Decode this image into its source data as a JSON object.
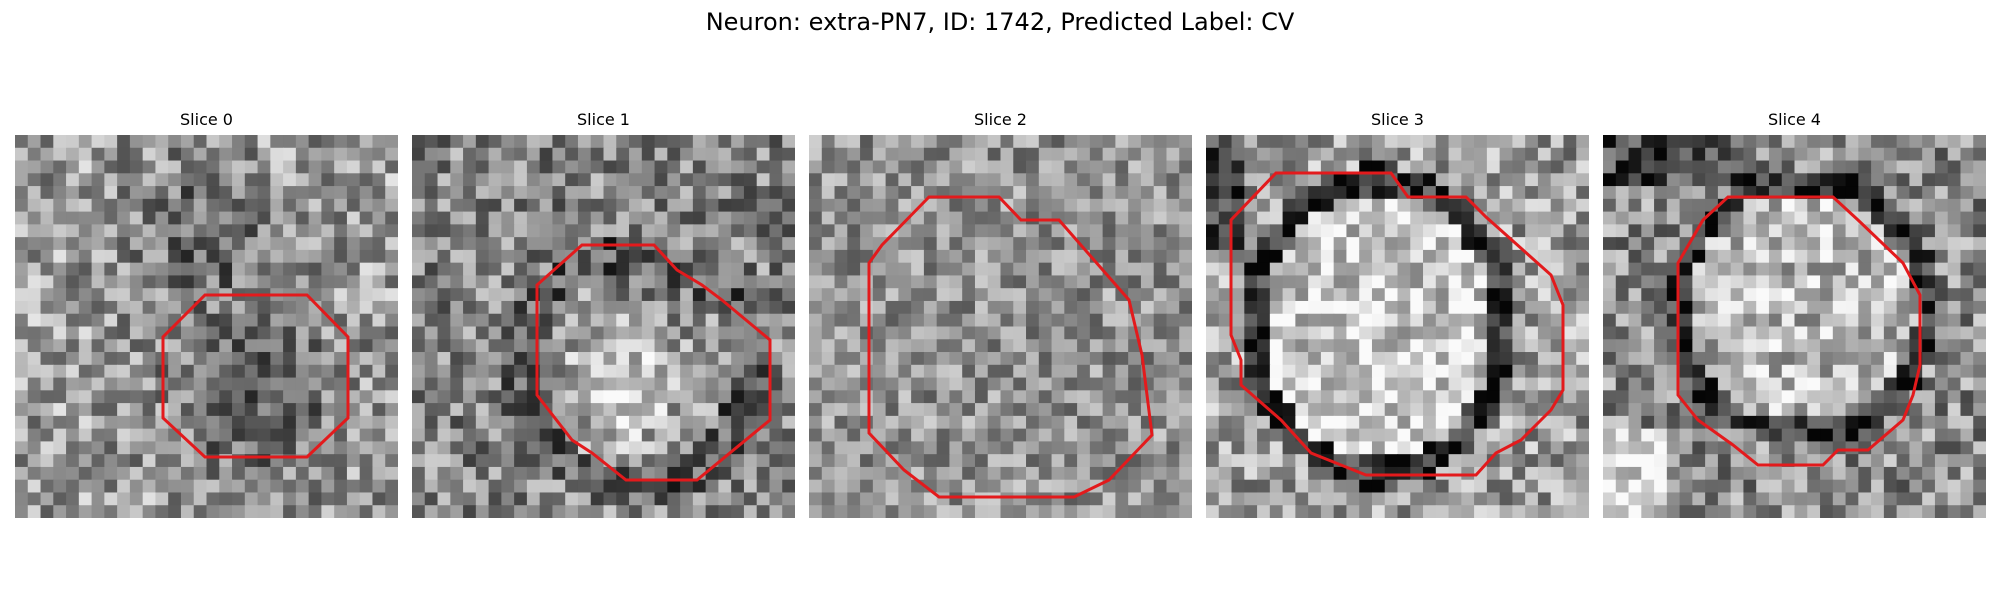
{
  "figure": {
    "title": "Neuron: extra-PN7, ID: 1742, Predicted Label: CV",
    "contour_color": "#e31a1c",
    "panels": [
      {
        "title": "Slice 0",
        "texture": "dark-blob"
      },
      {
        "title": "Slice 1",
        "texture": "bright-center"
      },
      {
        "title": "Slice 2",
        "texture": "uniform"
      },
      {
        "title": "Slice 3",
        "texture": "bright-teardrop"
      },
      {
        "title": "Slice 4",
        "texture": "ringed-cell"
      }
    ]
  }
}
